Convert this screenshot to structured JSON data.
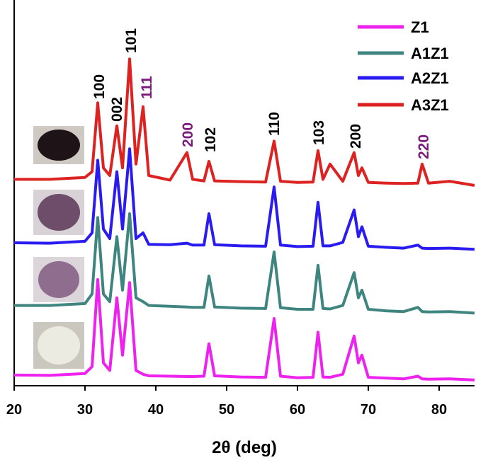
{
  "chart_data": {
    "type": "line",
    "xlabel": "2θ (deg)",
    "x": [
      20,
      25,
      30,
      31,
      31.8,
      32.6,
      33.5,
      34.5,
      35.3,
      36.3,
      37.2,
      38.2,
      39,
      42,
      44.4,
      45.2,
      46.8,
      47.5,
      48.3,
      52,
      55.5,
      56.7,
      57.6,
      60,
      62.2,
      62.9,
      63.6,
      64.6,
      66.4,
      68,
      68.6,
      69.1,
      70,
      72.6,
      75,
      77,
      77.6,
      78.5,
      81.5,
      85
    ],
    "series": [
      {
        "name": "Z1",
        "color": "#ee22ee",
        "values": [
          2.8,
          2.7,
          3.2,
          5,
          27.8,
          6,
          4,
          23,
          8,
          27,
          4,
          3,
          2.6,
          2.5,
          2.4,
          2.4,
          2.5,
          11,
          2.6,
          2.3,
          2.2,
          17.6,
          2.5,
          2.1,
          2.2,
          14,
          2.3,
          2.2,
          3,
          13,
          6,
          8,
          2.2,
          2,
          1.8,
          2.5,
          1.8,
          1.7,
          1.8,
          1.5
        ]
      },
      {
        "name": "A1Z1",
        "color": "#3e8580",
        "values": [
          21,
          21,
          21.5,
          24,
          44,
          24,
          22,
          39,
          25,
          45,
          23,
          22,
          21,
          20.8,
          20.6,
          20.5,
          20.5,
          28.7,
          20.6,
          20.3,
          20.2,
          35,
          20.4,
          20,
          20,
          31.5,
          20.2,
          20.1,
          21,
          29.6,
          23,
          25,
          20,
          19.6,
          19.4,
          20.5,
          19.4,
          19.3,
          19.4,
          19
        ]
      },
      {
        "name": "A2Z1",
        "color": "#2a1cf0",
        "values": [
          37.4,
          37.3,
          37.8,
          40,
          59,
          41,
          38.5,
          56,
          41,
          62,
          38.5,
          40,
          37,
          36.9,
          37.3,
          36.8,
          36.8,
          45,
          36.9,
          36.6,
          36.5,
          52,
          36.8,
          36.4,
          36.5,
          48,
          36.6,
          36.6,
          37.5,
          46,
          39,
          41.6,
          36.5,
          36.2,
          36,
          36.8,
          36,
          35.9,
          36,
          35.7
        ]
      },
      {
        "name": "A3Z1",
        "color": "#dd2222",
        "values": [
          54,
          54,
          54.5,
          56,
          74,
          57,
          55,
          68,
          57,
          85.5,
          58,
          73,
          55,
          53.8,
          61,
          54,
          53.6,
          58.7,
          53.6,
          53.4,
          53.3,
          64,
          53.5,
          53.2,
          53.3,
          61.5,
          54,
          58,
          53.5,
          61,
          55,
          57,
          53.2,
          53,
          52.9,
          53,
          58,
          53,
          53.5,
          52.4
        ]
      }
    ],
    "xlim": [
      20,
      85
    ],
    "xticks": [
      20,
      30,
      40,
      50,
      60,
      70,
      80
    ],
    "ylim": [
      0,
      100
    ],
    "annotations": [
      {
        "text": "100",
        "color": "#000000"
      },
      {
        "text": "002",
        "color": "#000000"
      },
      {
        "text": "101",
        "color": "#000000"
      },
      {
        "text": "111",
        "color": "#7a1a7a"
      },
      {
        "text": "200",
        "color": "#7a1a7a"
      },
      {
        "text": "102",
        "color": "#000000"
      },
      {
        "text": "110",
        "color": "#000000"
      },
      {
        "text": "103",
        "color": "#000000"
      },
      {
        "text": "200",
        "color": "#000000"
      },
      {
        "text": "220",
        "color": "#7a1a7a"
      }
    ]
  }
}
